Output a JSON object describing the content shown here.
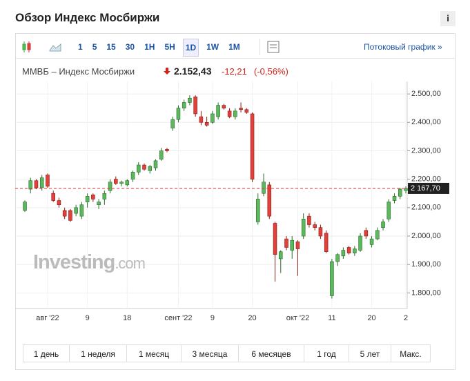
{
  "header": {
    "title": "Обзор Индекс Мосбиржи",
    "info": "i"
  },
  "toolbar": {
    "intervals": [
      "1",
      "5",
      "15",
      "30",
      "1H",
      "5H",
      "1D",
      "1W",
      "1M"
    ],
    "active": "1D",
    "stream": "Потоковый график »"
  },
  "quote": {
    "name": "ММВБ – Индекс Мосбиржи",
    "price": "2.152,43",
    "change": "-12,21",
    "change_pct": "(-0,56%)"
  },
  "watermark": {
    "brand": "Investing",
    ".com": ".com"
  },
  "ranges": [
    "1 день",
    "1 неделя",
    "1 месяц",
    "3 месяца",
    "6 месяцев",
    "1 год",
    "5 лет",
    "Макс."
  ],
  "chart_data": {
    "type": "candlestick",
    "categories": [
      null,
      null,
      null,
      null,
      "авг '22",
      null,
      null,
      null,
      null,
      null,
      null,
      "9",
      null,
      null,
      null,
      null,
      null,
      null,
      "18",
      null,
      null,
      null,
      null,
      null,
      null,
      null,
      null,
      "сент '22",
      null,
      null,
      null,
      null,
      null,
      "9",
      null,
      null,
      null,
      null,
      null,
      null,
      "20",
      null,
      null,
      null,
      null,
      null,
      null,
      null,
      "окт '22",
      null,
      null,
      null,
      null,
      null,
      "11",
      null,
      null,
      null,
      null,
      null,
      null,
      "20",
      null,
      null,
      null,
      null,
      null,
      "2"
    ],
    "open": [
      2090,
      2165,
      2195,
      2170,
      2215,
      2150,
      2125,
      2090,
      2090,
      2080,
      2070,
      2120,
      2145,
      2110,
      2130,
      2160,
      2200,
      2185,
      2180,
      2200,
      2225,
      2250,
      2230,
      2240,
      2270,
      2305,
      2380,
      2410,
      2450,
      2470,
      2490,
      2420,
      2400,
      2400,
      2420,
      2460,
      2440,
      2420,
      2450,
      2445,
      2430,
      2050,
      2150,
      2180,
      2045,
      1920,
      1990,
      1950,
      1980,
      2000,
      2070,
      2040,
      2030,
      2010,
      1790,
      1910,
      1930,
      1960,
      1940,
      1950,
      2020,
      1970,
      1990,
      2030,
      2060,
      2125,
      2140,
      2160
    ],
    "high": [
      2125,
      2205,
      2200,
      2215,
      2220,
      2160,
      2135,
      2100,
      2095,
      2110,
      2120,
      2150,
      2150,
      2130,
      2160,
      2200,
      2210,
      2195,
      2200,
      2230,
      2260,
      2255,
      2250,
      2270,
      2310,
      2310,
      2420,
      2460,
      2480,
      2495,
      2495,
      2440,
      2420,
      2440,
      2470,
      2465,
      2450,
      2450,
      2470,
      2450,
      2435,
      2150,
      2220,
      2190,
      2050,
      1950,
      2000,
      2000,
      1985,
      2080,
      2080,
      2050,
      2040,
      2020,
      1920,
      1940,
      1960,
      1965,
      1965,
      2010,
      2030,
      2000,
      2030,
      2060,
      2130,
      2150,
      2170,
      2175
    ],
    "low": [
      2085,
      2150,
      2165,
      2160,
      2170,
      2120,
      2100,
      2060,
      2050,
      2070,
      2060,
      2100,
      2120,
      2095,
      2110,
      2150,
      2180,
      2175,
      2175,
      2190,
      2215,
      2230,
      2220,
      2230,
      2265,
      2295,
      2370,
      2400,
      2440,
      2460,
      2420,
      2390,
      2385,
      2395,
      2410,
      2445,
      2415,
      2410,
      2435,
      2430,
      2190,
      2040,
      2140,
      2060,
      1840,
      1870,
      1950,
      1920,
      1860,
      1990,
      2030,
      2020,
      1990,
      1940,
      1780,
      1895,
      1920,
      1935,
      1930,
      1945,
      1990,
      1960,
      1985,
      2020,
      2050,
      2115,
      2130,
      2150
    ],
    "close": [
      2120,
      2195,
      2170,
      2205,
      2175,
      2125,
      2110,
      2070,
      2055,
      2100,
      2110,
      2140,
      2130,
      2120,
      2150,
      2190,
      2185,
      2190,
      2195,
      2225,
      2250,
      2235,
      2245,
      2265,
      2300,
      2300,
      2410,
      2450,
      2470,
      2485,
      2430,
      2400,
      2390,
      2430,
      2460,
      2450,
      2420,
      2440,
      2445,
      2435,
      2200,
      2130,
      2190,
      2070,
      1935,
      1945,
      1960,
      1985,
      1955,
      2060,
      2040,
      2030,
      2000,
      1945,
      1910,
      1935,
      1950,
      1940,
      1955,
      2000,
      2000,
      1990,
      2020,
      2050,
      2120,
      2140,
      2165,
      2168
    ],
    "up_color": "#5cb85c",
    "down_color": "#e0413b",
    "ylim": [
      1745,
      2527
    ],
    "yticks": [
      {
        "value": 1800,
        "label": "1.800,00"
      },
      {
        "value": 1900,
        "label": "1.900,00"
      },
      {
        "value": 2000,
        "label": "2.000,00"
      },
      {
        "value": 2100,
        "label": "2.100,00"
      },
      {
        "value": 2200,
        "label": "2.200,00"
      },
      {
        "value": 2300,
        "label": "2.300,00"
      },
      {
        "value": 2400,
        "label": "2.400,00"
      },
      {
        "value": 2500,
        "label": "2.500,00"
      }
    ],
    "last_price": {
      "value": 2167.7,
      "label": "2 167,70"
    },
    "grid": true
  }
}
